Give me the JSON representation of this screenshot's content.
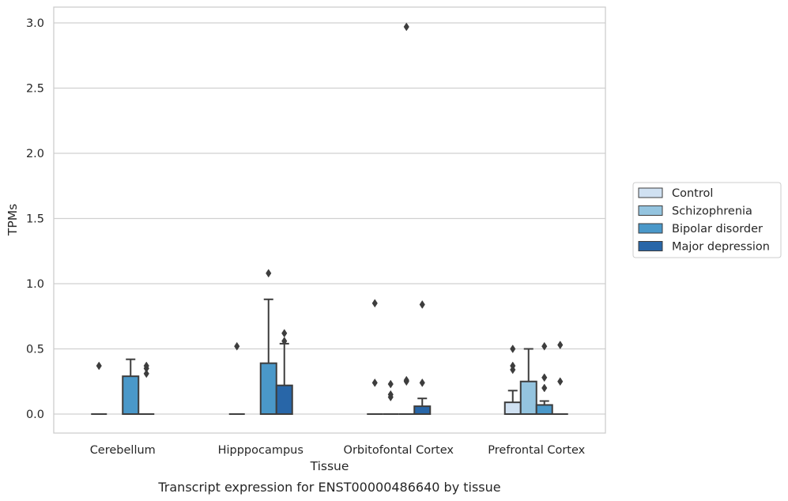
{
  "caption": "Transcript expression for ENST00000486640 by tissue",
  "chart_data": {
    "type": "box",
    "xlabel": "Tissue",
    "ylabel": "TPMs",
    "ylim": [
      -0.15,
      3.12
    ],
    "yticks": [
      "0.0",
      "0.5",
      "1.0",
      "1.5",
      "2.0",
      "2.5",
      "3.0"
    ],
    "grid": true,
    "legend_position": "right",
    "categories": [
      "Cerebellum",
      "Hipppocampus",
      "Orbitofontal Cortex",
      "Prefrontal Cortex"
    ],
    "series": [
      {
        "name": "Control",
        "color": "#d0e1f2",
        "boxes": [
          {
            "q1": 0,
            "median": 0,
            "q3": 0,
            "whisker_low": 0,
            "whisker_high": 0,
            "outliers": [
              0.37
            ]
          },
          {
            "q1": 0,
            "median": 0,
            "q3": 0,
            "whisker_low": 0,
            "whisker_high": 0,
            "outliers": [
              0.52
            ]
          },
          {
            "q1": 0,
            "median": 0,
            "q3": 0,
            "whisker_low": 0,
            "whisker_high": 0,
            "outliers": [
              0.85,
              0.24
            ]
          },
          {
            "q1": 0,
            "median": 0,
            "q3": 0.09,
            "whisker_low": 0,
            "whisker_high": 0.18,
            "outliers": [
              0.5,
              0.37,
              0.34
            ]
          }
        ]
      },
      {
        "name": "Schizophrenia",
        "color": "#94c4df",
        "boxes": [
          null,
          null,
          {
            "q1": 0,
            "median": 0,
            "q3": 0,
            "whisker_low": 0,
            "whisker_high": 0,
            "outliers": [
              0.23,
              0.15,
              0.13
            ]
          },
          {
            "q1": 0,
            "median": 0,
            "q3": 0.25,
            "whisker_low": 0,
            "whisker_high": 0.5,
            "outliers": []
          }
        ]
      },
      {
        "name": "Bipolar disorder",
        "color": "#4a98c9",
        "boxes": [
          {
            "q1": 0,
            "median": 0,
            "q3": 0.29,
            "whisker_low": 0,
            "whisker_high": 0.42,
            "outliers": []
          },
          {
            "q1": 0,
            "median": 0,
            "q3": 0.39,
            "whisker_low": 0,
            "whisker_high": 0.88,
            "outliers": [
              1.08
            ]
          },
          {
            "q1": 0,
            "median": 0,
            "q3": 0,
            "whisker_low": 0,
            "whisker_high": 0,
            "outliers": [
              2.97,
              0.26,
              0.25
            ]
          },
          {
            "q1": 0,
            "median": 0,
            "q3": 0.07,
            "whisker_low": 0,
            "whisker_high": 0.1,
            "outliers": [
              0.52,
              0.28,
              0.2
            ]
          }
        ]
      },
      {
        "name": "Major depression",
        "color": "#2866a8",
        "boxes": [
          {
            "q1": 0,
            "median": 0,
            "q3": 0,
            "whisker_low": 0,
            "whisker_high": 0,
            "outliers": [
              0.37,
              0.35,
              0.31
            ]
          },
          {
            "q1": 0,
            "median": 0,
            "q3": 0.22,
            "whisker_low": 0,
            "whisker_high": 0.54,
            "outliers": [
              0.62,
              0.56
            ]
          },
          {
            "q1": 0,
            "median": 0,
            "q3": 0.06,
            "whisker_low": 0,
            "whisker_high": 0.12,
            "outliers": [
              0.84,
              0.24
            ]
          },
          {
            "q1": 0,
            "median": 0,
            "q3": 0,
            "whisker_low": 0,
            "whisker_high": 0,
            "outliers": [
              0.53,
              0.25
            ]
          }
        ]
      }
    ]
  }
}
